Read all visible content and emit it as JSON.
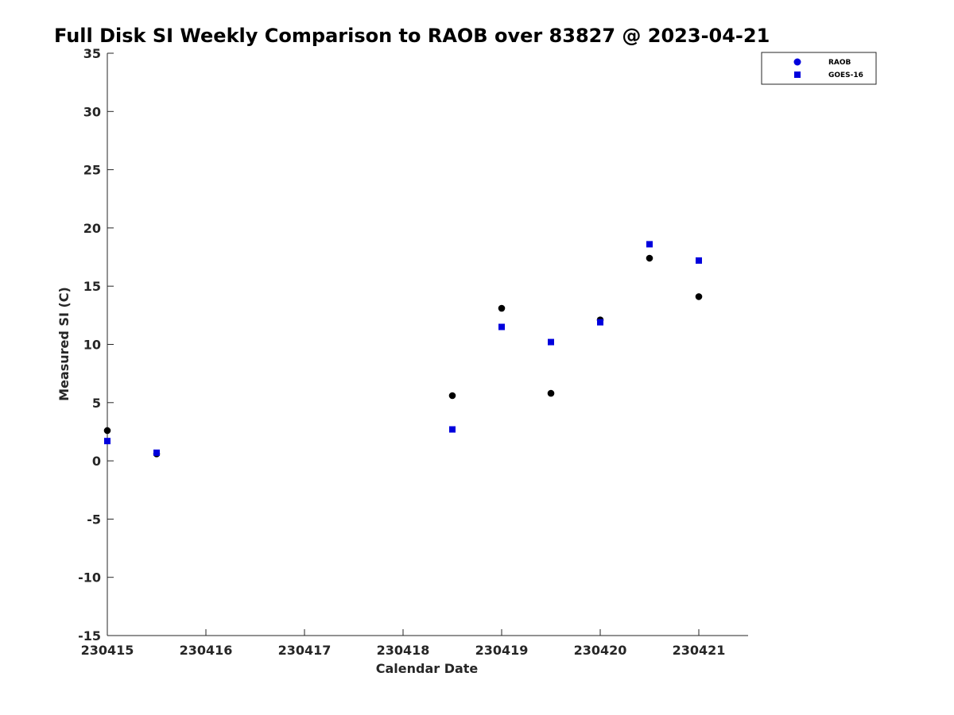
{
  "chart_data": {
    "type": "scatter",
    "title": "Full Disk SI Weekly Comparison to RAOB over 83827 @ 2023-04-21",
    "xlabel": "Calendar Date",
    "ylabel": "Measured SI (C)",
    "xlim": [
      0,
      6.5
    ],
    "ylim": [
      -15,
      35
    ],
    "x_ticks": [
      {
        "value": 0,
        "label": "230415"
      },
      {
        "value": 1,
        "label": "230416"
      },
      {
        "value": 2,
        "label": "230417"
      },
      {
        "value": 3,
        "label": "230418"
      },
      {
        "value": 4,
        "label": "230419"
      },
      {
        "value": 5,
        "label": "230420"
      },
      {
        "value": 6,
        "label": "230421"
      }
    ],
    "y_ticks": [
      {
        "value": 35,
        "label": "35"
      },
      {
        "value": 30,
        "label": "30"
      },
      {
        "value": 25,
        "label": "25"
      },
      {
        "value": 20,
        "label": "20"
      },
      {
        "value": 15,
        "label": "15"
      },
      {
        "value": 10,
        "label": "10"
      },
      {
        "value": 5,
        "label": "5"
      },
      {
        "value": 0,
        "label": "0"
      },
      {
        "value": -5,
        "label": "-5"
      },
      {
        "value": -10,
        "label": "-10"
      },
      {
        "value": -15,
        "label": "-15"
      }
    ],
    "grid": false,
    "legend_position": "top-right",
    "series": [
      {
        "name": "RAOB",
        "marker": "circle",
        "color": "#000000",
        "legend_color": "#0000dd",
        "points": [
          {
            "x": 0.0,
            "y": 2.6
          },
          {
            "x": 0.5,
            "y": 0.6
          },
          {
            "x": 3.5,
            "y": 5.6
          },
          {
            "x": 4.0,
            "y": 13.1
          },
          {
            "x": 4.5,
            "y": 5.8
          },
          {
            "x": 5.0,
            "y": 12.1
          },
          {
            "x": 5.5,
            "y": 17.4
          },
          {
            "x": 6.0,
            "y": 14.1
          }
        ]
      },
      {
        "name": "GOES-16",
        "marker": "square",
        "color": "#0000dd",
        "legend_color": "#0000dd",
        "points": [
          {
            "x": 0.0,
            "y": 1.7
          },
          {
            "x": 0.5,
            "y": 0.7
          },
          {
            "x": 3.5,
            "y": 2.7
          },
          {
            "x": 4.0,
            "y": 11.5
          },
          {
            "x": 4.5,
            "y": 10.2
          },
          {
            "x": 5.0,
            "y": 11.9
          },
          {
            "x": 5.5,
            "y": 18.6
          },
          {
            "x": 6.0,
            "y": 17.2
          }
        ]
      }
    ]
  }
}
